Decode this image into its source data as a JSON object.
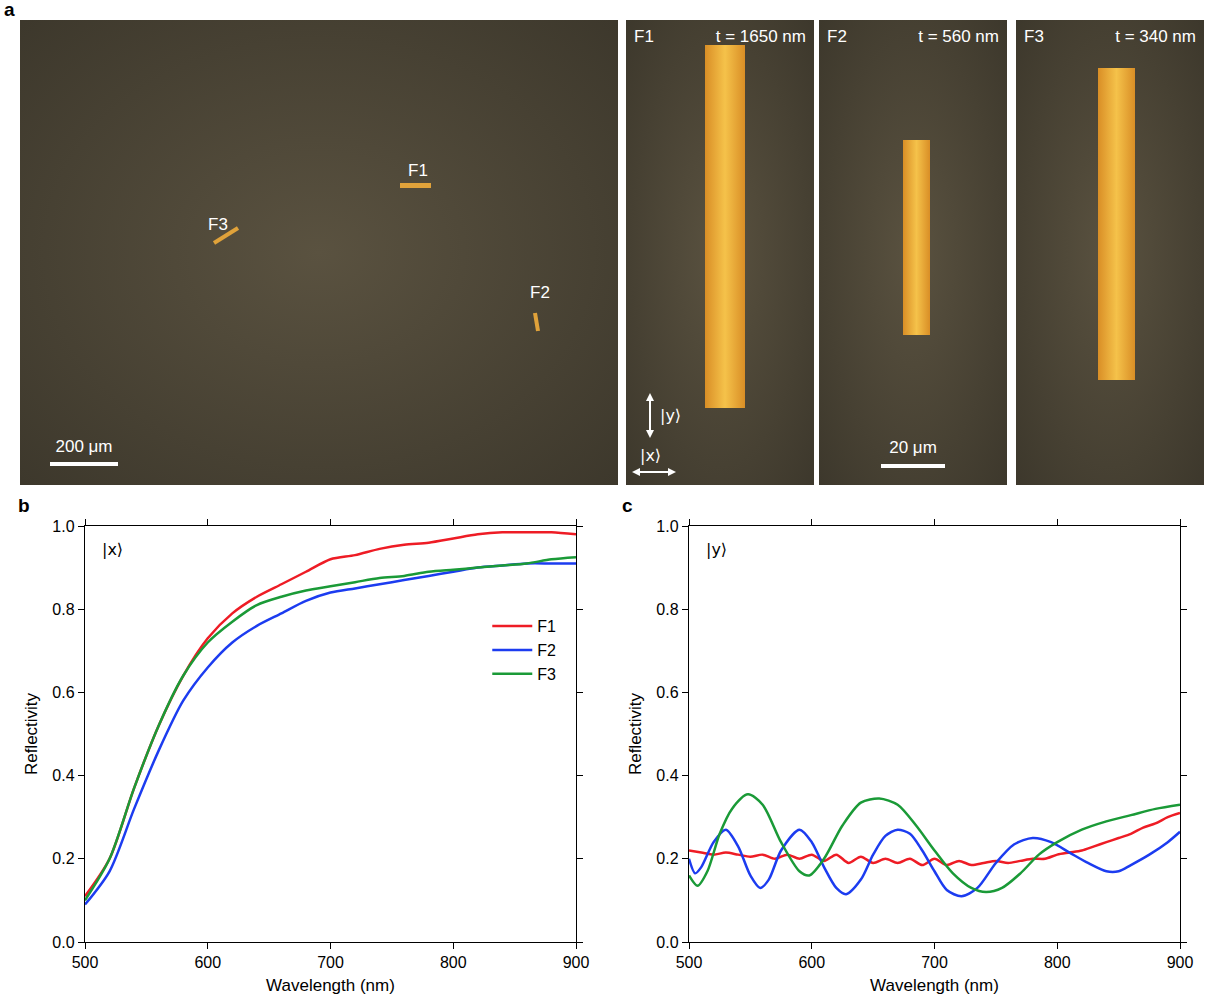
{
  "figure": {
    "panel_a": {
      "label": "a",
      "overview": {
        "labels": [
          "F1",
          "F2",
          "F3"
        ],
        "scale_bar": "200 μm"
      },
      "zooms": [
        {
          "name": "F1",
          "thickness": "t = 1650 nm"
        },
        {
          "name": "F2",
          "thickness": "t = 560 nm"
        },
        {
          "name": "F3",
          "thickness": "t = 340 nm"
        }
      ],
      "polarization": [
        "|y⟩",
        "|x⟩"
      ],
      "zoom_scale_bar": "20 μm"
    }
  },
  "chart_data": [
    {
      "type": "line",
      "panel": "b",
      "annotations": [
        "|x⟩"
      ],
      "x_label": "Wavelength (nm)",
      "y_label": "Reflectivity",
      "xlim": [
        500,
        900
      ],
      "xticks": [
        500,
        600,
        700,
        800,
        900
      ],
      "ylim": [
        0,
        1
      ],
      "yticks": [
        {
          "value": 0,
          "label": "0.0"
        },
        0.2,
        0.4,
        0.6,
        0.8,
        {
          "value": 1,
          "label": "1.0"
        }
      ],
      "legend": "right",
      "x": [
        500,
        520,
        540,
        560,
        580,
        600,
        620,
        640,
        660,
        680,
        700,
        720,
        740,
        760,
        780,
        800,
        820,
        840,
        860,
        880,
        900
      ],
      "series": [
        {
          "name": "F1",
          "color": "#ee1c25",
          "values": [
            0.11,
            0.2,
            0.37,
            0.52,
            0.64,
            0.73,
            0.79,
            0.83,
            0.86,
            0.89,
            0.92,
            0.93,
            0.945,
            0.955,
            0.96,
            0.97,
            0.98,
            0.985,
            0.985,
            0.985,
            0.98
          ]
        },
        {
          "name": "F2",
          "color": "#1c3cf0",
          "values": [
            0.09,
            0.17,
            0.32,
            0.46,
            0.58,
            0.66,
            0.72,
            0.76,
            0.79,
            0.82,
            0.84,
            0.85,
            0.86,
            0.87,
            0.88,
            0.89,
            0.9,
            0.905,
            0.91,
            0.91,
            0.91
          ]
        },
        {
          "name": "F3",
          "color": "#1a9a37",
          "values": [
            0.1,
            0.2,
            0.37,
            0.52,
            0.64,
            0.72,
            0.77,
            0.81,
            0.83,
            0.845,
            0.855,
            0.865,
            0.875,
            0.88,
            0.89,
            0.895,
            0.9,
            0.905,
            0.91,
            0.92,
            0.925
          ]
        }
      ]
    },
    {
      "type": "line",
      "panel": "c",
      "annotations": [
        "|y⟩"
      ],
      "x_label": "Wavelength (nm)",
      "y_label": "Reflectivity",
      "xlim": [
        500,
        900
      ],
      "xticks": [
        500,
        600,
        700,
        800,
        900
      ],
      "ylim": [
        0,
        1
      ],
      "yticks": [
        {
          "value": 0,
          "label": "0.0"
        },
        0.2,
        0.4,
        0.6,
        0.8,
        {
          "value": 1,
          "label": "1.0"
        }
      ],
      "series": [
        {
          "color": "#ee1c25",
          "x": [
            500,
            510,
            520,
            530,
            540,
            550,
            560,
            570,
            580,
            590,
            600,
            610,
            620,
            630,
            640,
            650,
            660,
            670,
            680,
            690,
            700,
            710,
            720,
            730,
            740,
            750,
            760,
            770,
            780,
            790,
            800,
            810,
            820,
            830,
            840,
            850,
            860,
            870,
            880,
            890,
            900
          ],
          "values": [
            0.22,
            0.215,
            0.21,
            0.215,
            0.21,
            0.205,
            0.21,
            0.2,
            0.21,
            0.2,
            0.21,
            0.195,
            0.21,
            0.19,
            0.205,
            0.19,
            0.2,
            0.19,
            0.2,
            0.185,
            0.2,
            0.185,
            0.195,
            0.185,
            0.19,
            0.195,
            0.19,
            0.195,
            0.2,
            0.2,
            0.21,
            0.215,
            0.22,
            0.23,
            0.24,
            0.25,
            0.26,
            0.275,
            0.285,
            0.3,
            0.31
          ]
        },
        {
          "color": "#1c3cf0",
          "x": [
            500,
            505,
            510,
            520,
            530,
            540,
            550,
            558,
            565,
            575,
            590,
            600,
            610,
            620,
            628,
            640,
            650,
            660,
            670,
            680,
            690,
            700,
            710,
            722,
            735,
            750,
            765,
            780,
            795,
            810,
            825,
            840,
            850,
            860,
            875,
            890,
            900
          ],
          "values": [
            0.2,
            0.165,
            0.18,
            0.24,
            0.27,
            0.23,
            0.16,
            0.13,
            0.15,
            0.22,
            0.27,
            0.24,
            0.18,
            0.13,
            0.115,
            0.15,
            0.21,
            0.255,
            0.27,
            0.26,
            0.22,
            0.17,
            0.125,
            0.11,
            0.13,
            0.19,
            0.235,
            0.25,
            0.24,
            0.215,
            0.19,
            0.17,
            0.17,
            0.185,
            0.21,
            0.24,
            0.265
          ]
        },
        {
          "color": "#1a9a37",
          "x": [
            500,
            507,
            515,
            525,
            535,
            548,
            560,
            575,
            590,
            598,
            610,
            625,
            640,
            655,
            670,
            685,
            700,
            715,
            730,
            742,
            755,
            770,
            785,
            800,
            820,
            840,
            860,
            880,
            900
          ],
          "values": [
            0.16,
            0.135,
            0.17,
            0.26,
            0.32,
            0.355,
            0.33,
            0.24,
            0.17,
            0.16,
            0.2,
            0.28,
            0.335,
            0.345,
            0.33,
            0.28,
            0.22,
            0.165,
            0.13,
            0.12,
            0.13,
            0.165,
            0.21,
            0.24,
            0.27,
            0.29,
            0.305,
            0.32,
            0.33
          ]
        }
      ]
    }
  ]
}
